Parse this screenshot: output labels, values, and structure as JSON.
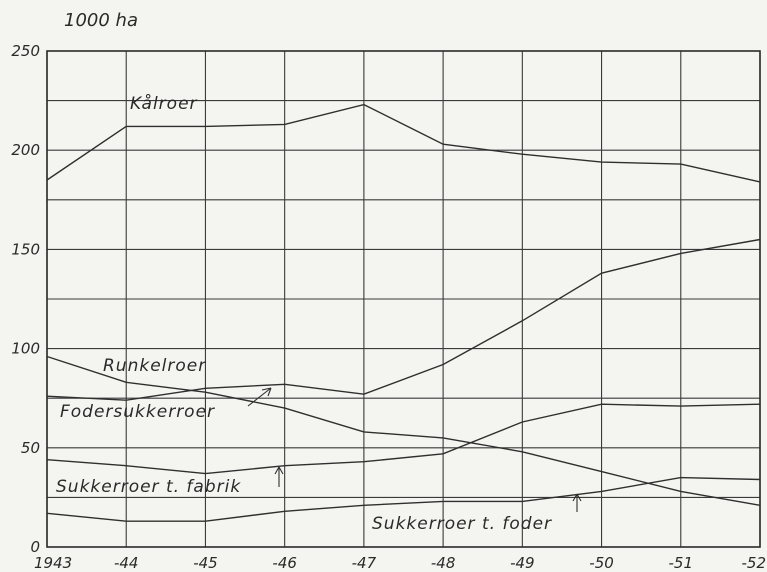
{
  "chart_data": {
    "type": "line",
    "unit_label": "1000 ha",
    "x": [
      "1943",
      "-44",
      "-45",
      "-46",
      "-47",
      "-48",
      "-49",
      "-50",
      "-51",
      "-52"
    ],
    "ylim": [
      0,
      250
    ],
    "yticks": [
      "0",
      "50",
      "100",
      "150",
      "200",
      "250"
    ],
    "grid": true,
    "series": [
      {
        "name": "Kålroer",
        "values": [
          185,
          212,
          212,
          213,
          223,
          203,
          198,
          194,
          193,
          184
        ]
      },
      {
        "name": "Runkelroer",
        "values": [
          96,
          83,
          78,
          70,
          58,
          55,
          48,
          38,
          28,
          21
        ]
      },
      {
        "name": "Fodersukkerroer",
        "values": [
          76,
          74,
          80,
          82,
          77,
          92,
          114,
          138,
          148,
          155
        ]
      },
      {
        "name": "Sukkerroer t. fabrik",
        "values": [
          44,
          41,
          37,
          41,
          43,
          47,
          63,
          72,
          71,
          72
        ]
      },
      {
        "name": "Sukkerroer t. foder",
        "values": [
          17,
          13,
          13,
          18,
          21,
          23,
          23,
          28,
          35,
          34
        ]
      }
    ]
  }
}
